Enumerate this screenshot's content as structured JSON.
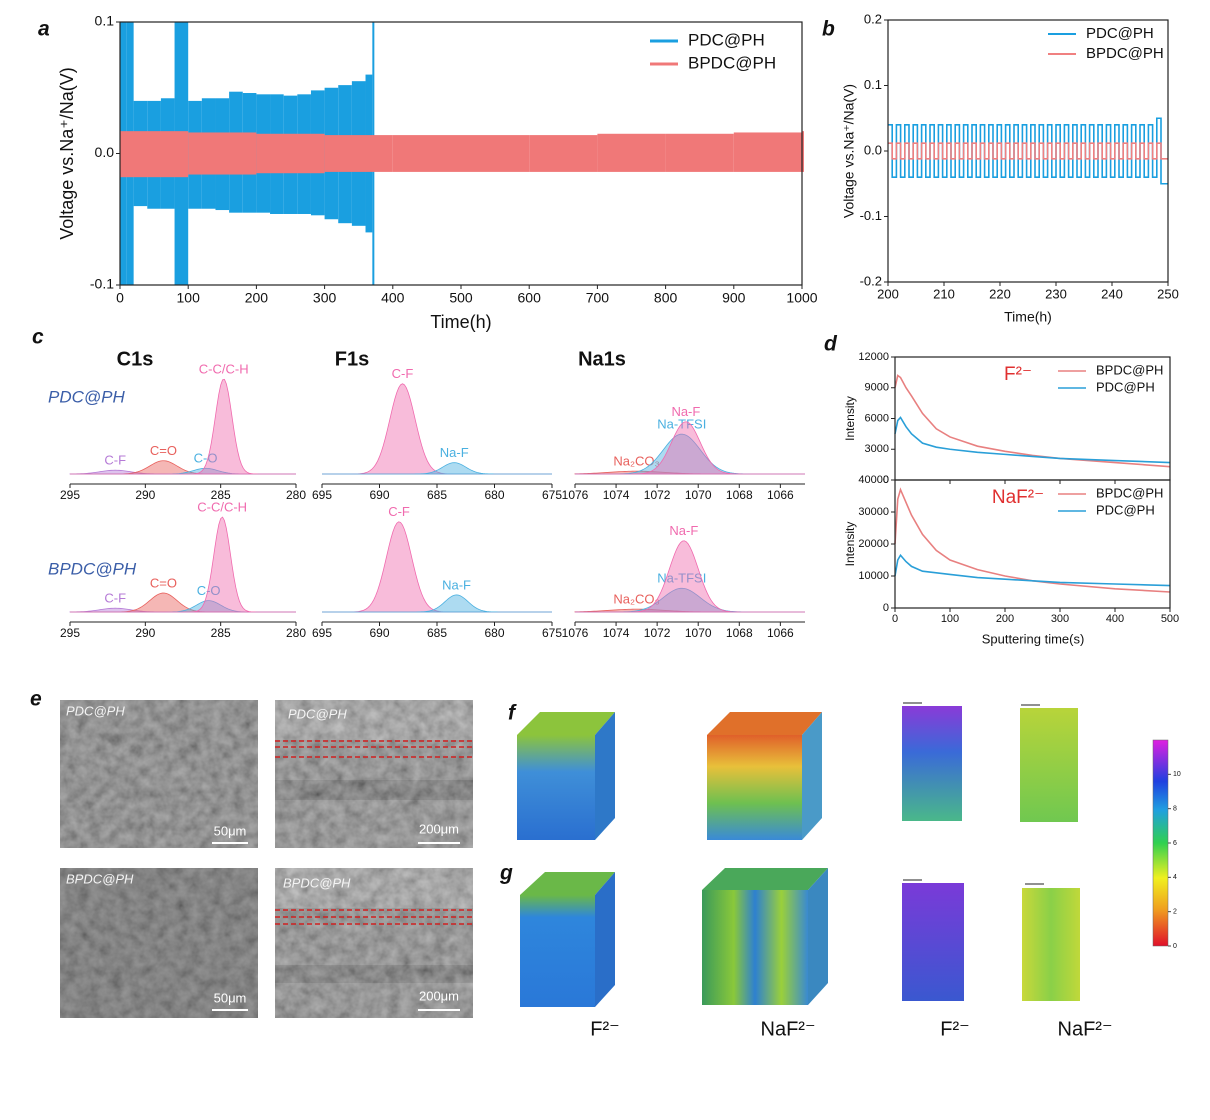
{
  "chart_data": [
    {
      "panel": "a",
      "type": "band",
      "xlabel": "Time(h)",
      "ylabel": "Voltage vs.Na⁺/Na(V)",
      "xlim": [
        0,
        1000
      ],
      "xticks": [
        0,
        100,
        200,
        300,
        400,
        500,
        600,
        700,
        800,
        900,
        1000
      ],
      "ylim": [
        -0.1,
        0.1
      ],
      "yticks": [
        -0.1,
        {
          "value": 0,
          "label": "0.0"
        },
        0.1
      ],
      "legend": "upper right",
      "series": [
        {
          "name": "PDC@PH",
          "color": "#1a9fe0",
          "x": [
            0,
            10,
            20,
            40,
            60,
            80,
            100,
            120,
            140,
            160,
            180,
            200,
            220,
            240,
            260,
            280,
            300,
            320,
            340,
            360,
            370
          ],
          "high": [
            0.1,
            0.1,
            0.04,
            0.04,
            0.042,
            0.1,
            0.04,
            0.042,
            0.042,
            0.047,
            0.046,
            0.045,
            0.045,
            0.044,
            0.045,
            0.048,
            0.05,
            0.052,
            0.055,
            0.06,
            0.1
          ],
          "low": [
            -0.1,
            -0.1,
            -0.04,
            -0.042,
            -0.042,
            -0.1,
            -0.042,
            -0.042,
            -0.043,
            -0.045,
            -0.045,
            -0.045,
            -0.046,
            -0.046,
            -0.046,
            -0.047,
            -0.05,
            -0.053,
            -0.055,
            -0.06,
            -0.1
          ]
        },
        {
          "name": "BPDC@PH",
          "color": "#f07878",
          "x": [
            0,
            100,
            200,
            300,
            400,
            500,
            600,
            700,
            800,
            900,
            1000
          ],
          "high": [
            0.017,
            0.016,
            0.015,
            0.014,
            0.014,
            0.014,
            0.014,
            0.015,
            0.015,
            0.016,
            0.017
          ],
          "low": [
            -0.018,
            -0.016,
            -0.015,
            -0.014,
            -0.014,
            -0.014,
            -0.014,
            -0.014,
            -0.014,
            -0.014,
            -0.014
          ]
        }
      ]
    },
    {
      "panel": "b",
      "type": "step",
      "xlabel": "Time(h)",
      "ylabel": "Voltage vs.Na⁺/Na(V)",
      "xlim": [
        200,
        250
      ],
      "xticks": [
        200,
        210,
        220,
        230,
        240,
        250
      ],
      "ylim": [
        -0.2,
        0.2
      ],
      "yticks": [
        -0.2,
        -0.1,
        {
          "value": 0,
          "label": "0.0"
        },
        0.1,
        0.2
      ],
      "legend": "upper right",
      "x": [
        200,
        200.75,
        201.5,
        202.25,
        203,
        203.75,
        204.5,
        205.25,
        206,
        206.75,
        207.5,
        208.25,
        209,
        209.75,
        210.5,
        211.25,
        212,
        212.75,
        213.5,
        214.25,
        215,
        215.75,
        216.5,
        217.25,
        218,
        218.75,
        219.5,
        220.25,
        221,
        221.75,
        222.5,
        223.25,
        224,
        224.75,
        225.5,
        226.25,
        227,
        227.75,
        228.5,
        229.25,
        230,
        230.75,
        231.5,
        232.25,
        233,
        233.75,
        234.5,
        235.25,
        236,
        236.75,
        237.5,
        238.25,
        239,
        239.75,
        240.5,
        241.25,
        242,
        242.75,
        243.5,
        244.25,
        245,
        245.75,
        246.5,
        247.25,
        248,
        248.75,
        249.5
      ],
      "series": [
        {
          "name": "PDC@PH",
          "color": "#1a9fe0",
          "values": [
            0.04,
            -0.04,
            0.04,
            -0.04,
            0.04,
            -0.04,
            0.04,
            -0.04,
            0.04,
            -0.04,
            0.04,
            -0.04,
            0.04,
            -0.04,
            0.04,
            -0.04,
            0.04,
            -0.04,
            0.04,
            -0.04,
            0.04,
            -0.04,
            0.04,
            -0.04,
            0.04,
            -0.04,
            0.04,
            -0.04,
            0.04,
            -0.04,
            0.04,
            -0.04,
            0.04,
            -0.04,
            0.04,
            -0.04,
            0.04,
            -0.04,
            0.04,
            -0.04,
            0.04,
            -0.04,
            0.04,
            -0.04,
            0.04,
            -0.04,
            0.04,
            -0.04,
            0.04,
            -0.04,
            0.04,
            -0.04,
            0.04,
            -0.04,
            0.04,
            -0.04,
            0.04,
            -0.04,
            0.04,
            -0.04,
            0.04,
            -0.04,
            0.04,
            -0.04,
            0.05,
            -0.05,
            -0.05
          ]
        },
        {
          "name": "BPDC@PH",
          "color": "#f08080",
          "values": [
            0.012,
            -0.012,
            0.012,
            -0.012,
            0.012,
            -0.012,
            0.012,
            -0.012,
            0.012,
            -0.012,
            0.012,
            -0.012,
            0.012,
            -0.012,
            0.012,
            -0.012,
            0.012,
            -0.012,
            0.012,
            -0.012,
            0.012,
            -0.012,
            0.012,
            -0.012,
            0.012,
            -0.012,
            0.012,
            -0.012,
            0.012,
            -0.012,
            0.012,
            -0.012,
            0.012,
            -0.012,
            0.012,
            -0.012,
            0.012,
            -0.012,
            0.012,
            -0.012,
            0.012,
            -0.012,
            0.012,
            -0.012,
            0.012,
            -0.012,
            0.012,
            -0.012,
            0.012,
            -0.012,
            0.012,
            -0.012,
            0.012,
            -0.012,
            0.012,
            -0.012,
            0.012,
            -0.012,
            0.012,
            -0.012,
            0.012,
            -0.012,
            0.012,
            -0.012,
            0.012,
            -0.012,
            -0.012
          ]
        }
      ]
    },
    {
      "panel": "c",
      "type": "peaks",
      "columns": [
        "C1s",
        "F1s",
        "Na1s"
      ],
      "rows": [
        "PDC@PH",
        "BPDC@PH"
      ],
      "plots": [
        {
          "xlim": [
            295,
            280
          ],
          "xticks": [
            295,
            290,
            285,
            280
          ],
          "peaks": [
            {
              "name": "C-F",
              "color": "#b57ad6",
              "center": 292,
              "height": 0.04,
              "width": 1.0
            },
            {
              "name": "C=O",
              "color": "#e8605c",
              "center": 288.8,
              "height": 0.14,
              "width": 0.9
            },
            {
              "name": "C-O",
              "color": "#4ab0e0",
              "center": 286,
              "height": 0.06,
              "width": 0.8
            },
            {
              "name": "C-C/C-H",
              "color": "#f06aae",
              "center": 284.8,
              "height": 1,
              "width": 0.55
            }
          ]
        },
        {
          "xlim": [
            695,
            675
          ],
          "xticks": [
            695,
            690,
            685,
            680,
            675
          ],
          "peaks": [
            {
              "name": "C-F",
              "color": "#f06aae",
              "center": 688,
              "height": 0.95,
              "width": 1.1
            },
            {
              "name": "Na-F",
              "color": "#4ab0e0",
              "center": 683.5,
              "height": 0.12,
              "width": 1.0
            }
          ]
        },
        {
          "xlim": [
            1076,
            1064.8
          ],
          "xticks": [
            1076,
            1074,
            1072,
            1070,
            1068,
            1066
          ],
          "peaks": [
            {
              "name": "Na₂CO₃",
              "color": "#e8605c",
              "center": 1073,
              "height": 0.03,
              "width": 1.3
            },
            {
              "name": "Na-TFSI",
              "color": "#4ab0e0",
              "center": 1070.8,
              "height": 0.42,
              "width": 0.9
            },
            {
              "name": "Na-F",
              "color": "#f06aae",
              "center": 1070.6,
              "height": 0.55,
              "width": 0.7
            }
          ]
        },
        {
          "xlim": [
            295,
            280
          ],
          "xticks": [
            295,
            290,
            285,
            280
          ],
          "peaks": [
            {
              "name": "C-F",
              "color": "#b57ad6",
              "center": 292,
              "height": 0.04,
              "width": 1.0
            },
            {
              "name": "C=O",
              "color": "#e8605c",
              "center": 288.8,
              "height": 0.2,
              "width": 0.9
            },
            {
              "name": "C-O",
              "color": "#4ab0e0",
              "center": 285.8,
              "height": 0.12,
              "width": 0.8
            },
            {
              "name": "C-C/C-H",
              "color": "#f06aae",
              "center": 284.9,
              "height": 1,
              "width": 0.55
            }
          ]
        },
        {
          "xlim": [
            695,
            675
          ],
          "xticks": [
            695,
            690,
            685,
            680,
            675
          ],
          "peaks": [
            {
              "name": "C-F",
              "color": "#f06aae",
              "center": 688.3,
              "height": 0.95,
              "width": 1.1
            },
            {
              "name": "Na-F",
              "color": "#4ab0e0",
              "center": 683.3,
              "height": 0.18,
              "width": 1.0
            }
          ]
        },
        {
          "xlim": [
            1076,
            1064.8
          ],
          "xticks": [
            1076,
            1074,
            1072,
            1070,
            1068,
            1066
          ],
          "peaks": [
            {
              "name": "Na₂CO₃",
              "color": "#e8605c",
              "center": 1073,
              "height": 0.03,
              "width": 1.3
            },
            {
              "name": "Na-TFSI",
              "color": "#4ab0e0",
              "center": 1070.8,
              "height": 0.25,
              "width": 0.9
            },
            {
              "name": "Na-F",
              "color": "#f06aae",
              "center": 1070.7,
              "height": 0.75,
              "width": 0.7
            }
          ]
        }
      ]
    },
    {
      "panel": "d",
      "type": "line",
      "xlabel": "Sputtering time(s)",
      "xlim": [
        0,
        500
      ],
      "xticks": [
        0,
        100,
        200,
        300,
        400,
        500
      ],
      "x": [
        0,
        5,
        10,
        20,
        30,
        50,
        75,
        100,
        150,
        200,
        250,
        300,
        400,
        500
      ],
      "legend": "upper right",
      "subplots": [
        {
          "annotation": "F²⁻",
          "ylabel": "Intensity",
          "ylim": [
            0,
            12000
          ],
          "yticks": [
            0,
            3000,
            6000,
            9000,
            12000
          ],
          "series": [
            {
              "name": "BPDC@PH",
              "color": "#e88080",
              "values": [
                9000,
                10200,
                10000,
                9000,
                8200,
                6500,
                5000,
                4200,
                3300,
                2800,
                2400,
                2100,
                1700,
                1300
              ]
            },
            {
              "name": "PDC@PH",
              "color": "#2a9fd8",
              "values": [
                4500,
                5800,
                6100,
                5200,
                4500,
                3600,
                3200,
                3000,
                2700,
                2500,
                2300,
                2100,
                1900,
                1700
              ]
            }
          ]
        },
        {
          "annotation": "NaF²⁻",
          "ylabel": "Intensity",
          "ylim": [
            0,
            40000
          ],
          "yticks": [
            0,
            10000,
            20000,
            30000,
            40000
          ],
          "series": [
            {
              "name": "BPDC@PH",
              "color": "#e88080",
              "values": [
                20000,
                34000,
                37000,
                33000,
                29000,
                23000,
                18000,
                15000,
                12000,
                10000,
                8500,
                7500,
                6000,
                5000
              ]
            },
            {
              "name": "PDC@PH",
              "color": "#2a9fd8",
              "values": [
                10000,
                15000,
                16500,
                14500,
                13000,
                11500,
                11000,
                10500,
                9500,
                9000,
                8500,
                8000,
                7500,
                7000
              ]
            }
          ]
        }
      ]
    }
  ],
  "panel_e": {
    "panel": "e",
    "images": [
      {
        "label": "PDC@PH",
        "scale": "50μm"
      },
      {
        "label": "PDC@PH",
        "scale": "200μm"
      },
      {
        "label": "BPDC@PH",
        "scale": "50μm"
      },
      {
        "label": "BPDC@PH",
        "scale": "200μm"
      }
    ]
  },
  "panel_fg": {
    "panels": [
      "f",
      "g"
    ],
    "captions": [
      "F²⁻",
      "NaF²⁻",
      "F²⁻",
      "NaF²⁻"
    ],
    "colorbar_lim": [
      0,
      12
    ],
    "colorbar_ticks": [
      0,
      2,
      4,
      6,
      8,
      10
    ]
  }
}
